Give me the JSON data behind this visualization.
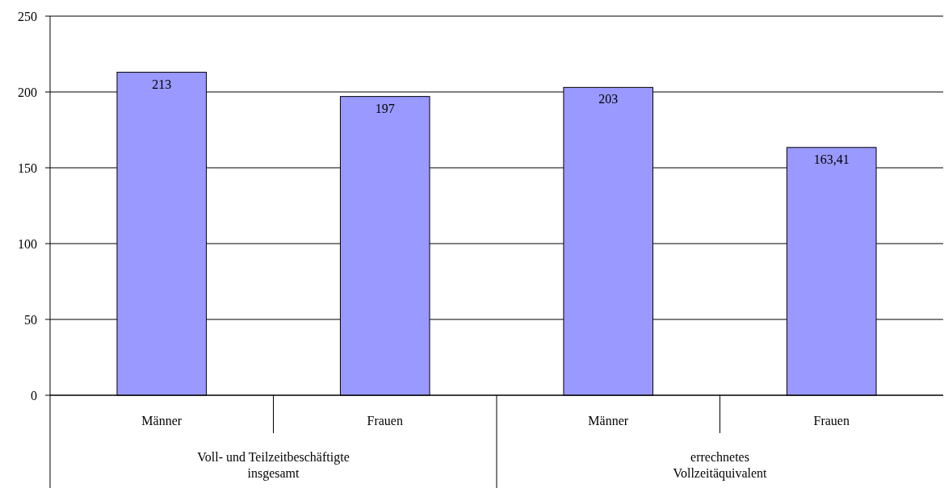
{
  "chart_data": {
    "type": "bar",
    "categories": [
      "Männer",
      "Frauen",
      "Männer",
      "Frauen"
    ],
    "values": [
      213,
      197,
      203,
      163.41
    ],
    "value_labels": [
      "213",
      "197",
      "203",
      "163,41"
    ],
    "color": "#9999ff",
    "ylim": [
      0,
      250
    ],
    "yticks": [
      0,
      50,
      100,
      150,
      200,
      250
    ],
    "grid": "y",
    "annotations": [
      "Voll- und Teilzeitbeschäftigte\ninsgesamt",
      "errechnetes\nVollzeitäquivalent"
    ]
  }
}
